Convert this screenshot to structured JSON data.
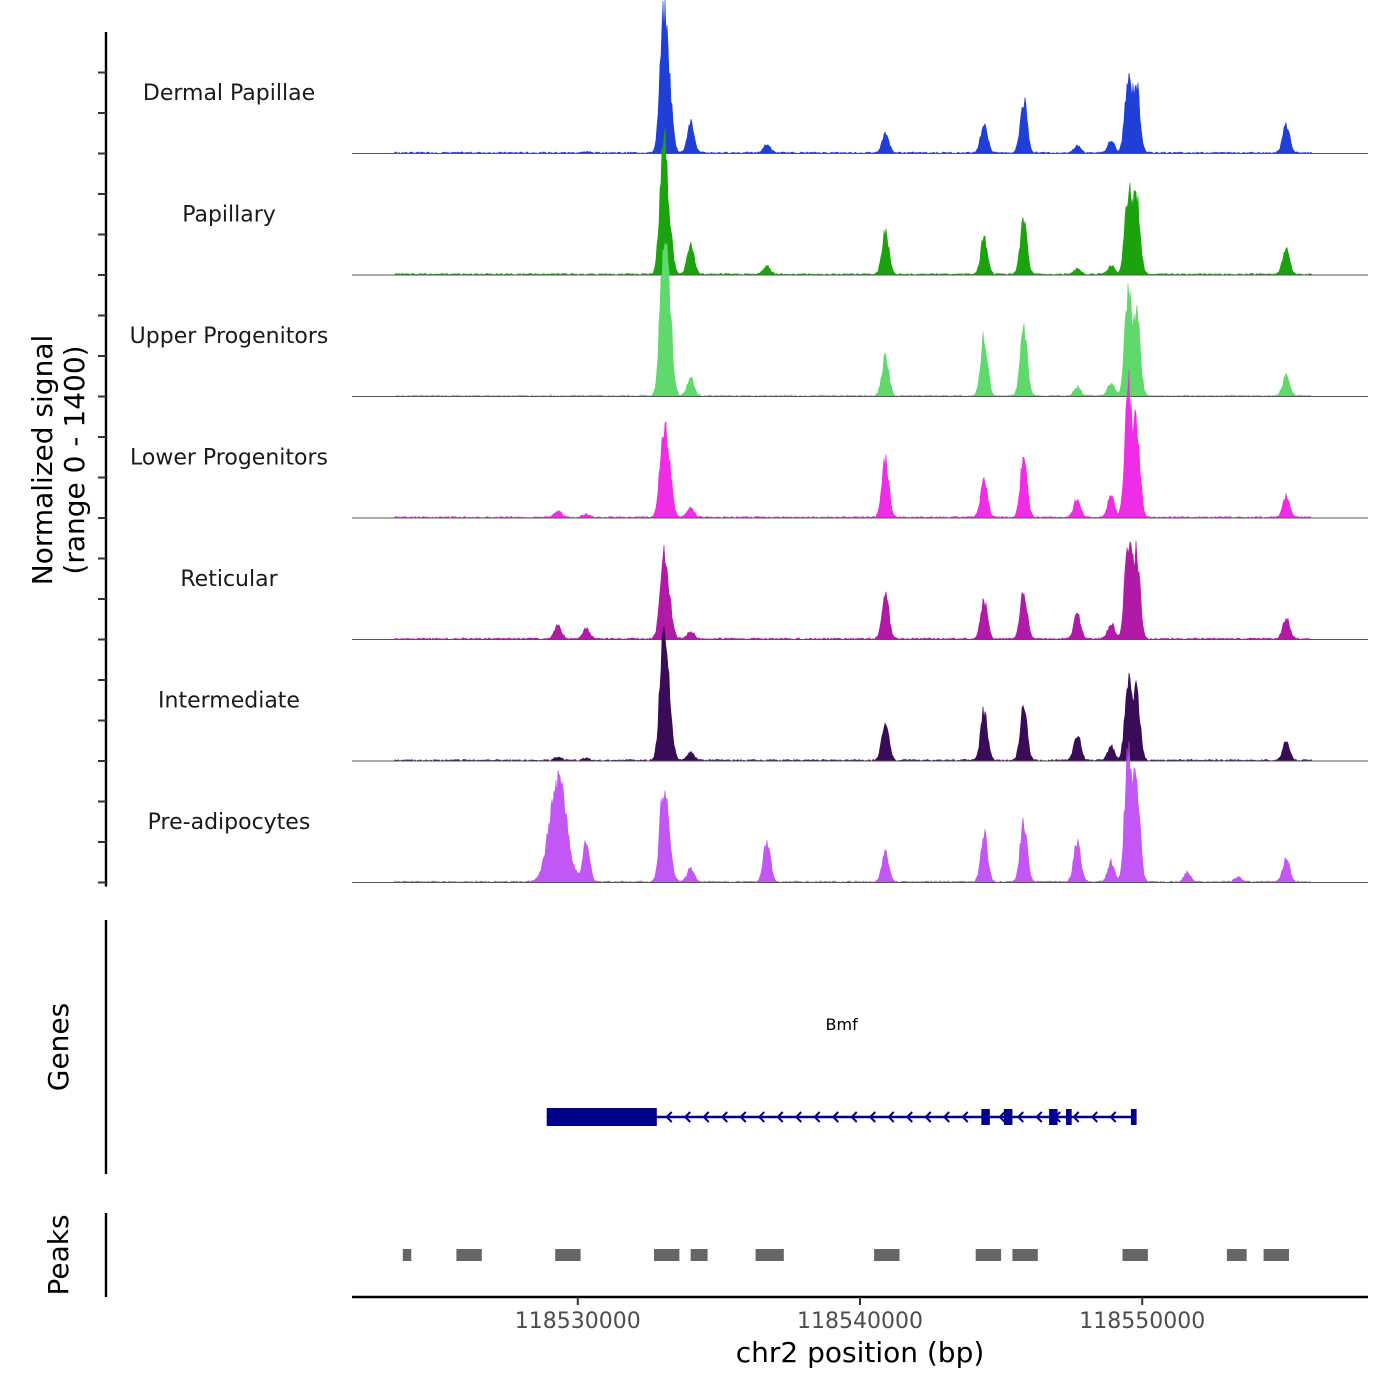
{
  "chart_data": {
    "type": "area",
    "title": "",
    "region": {
      "chromosome": "chr2",
      "start": 118522000,
      "end": 118558000
    },
    "xlabel": "chr2 position (bp)",
    "xticks": [
      118530000,
      118540000,
      118550000
    ],
    "xtick_labels": [
      "118530000",
      "118540000",
      "118550000"
    ],
    "ylabel_line1": "Normalized signal",
    "ylabel_line2": "(range 0 - 1400)",
    "ylim": [
      0,
      1400
    ],
    "panel_titles": {
      "genes": "Genes",
      "peaks": "Peaks"
    },
    "peak_positions": [
      118529300,
      118530300,
      118532900,
      118533000,
      118533100,
      118533250,
      118534000,
      118536700,
      118540900,
      118544400,
      118545800,
      118547700,
      118548900,
      118549500,
      118549800,
      118551600,
      118552300,
      118553400,
      118555100
    ],
    "series": [
      {
        "name": "Dermal Papillae",
        "color": "#1f3fd6",
        "peaks": [
          0,
          15,
          0,
          1300,
          1000,
          750,
          500,
          140,
          320,
          500,
          870,
          110,
          200,
          1140,
          1100,
          0,
          0,
          0,
          480
        ]
      },
      {
        "name": "Papillary",
        "color": "#1aa30d",
        "peaks": [
          0,
          0,
          0,
          1400,
          850,
          560,
          500,
          140,
          700,
          590,
          920,
          90,
          150,
          1330,
          1250,
          0,
          0,
          0,
          420
        ]
      },
      {
        "name": "Upper Progenitors",
        "color": "#5fd96c",
        "peaks": [
          0,
          0,
          0,
          1380,
          1280,
          1050,
          300,
          0,
          650,
          980,
          1150,
          150,
          220,
          1600,
          1350,
          0,
          0,
          0,
          330
        ]
      },
      {
        "name": "Lower Progenitors",
        "color": "#f02de6",
        "peaks": [
          110,
          50,
          0,
          880,
          650,
          550,
          150,
          0,
          960,
          650,
          990,
          310,
          350,
          2100,
          1500,
          0,
          0,
          0,
          350
        ]
      },
      {
        "name": "Reticular",
        "color": "#b01aa6",
        "peaks": [
          230,
          170,
          0,
          780,
          620,
          400,
          130,
          0,
          750,
          620,
          800,
          420,
          260,
          1620,
          1400,
          0,
          0,
          0,
          350
        ]
      },
      {
        "name": "Intermediate",
        "color": "#3a0c57",
        "peaks": [
          50,
          40,
          0,
          1350,
          800,
          620,
          140,
          0,
          650,
          820,
          900,
          420,
          240,
          1250,
          1150,
          0,
          0,
          0,
          310
        ]
      },
      {
        "name": "Pre-adipocytes",
        "color": "#c257f5",
        "peaks": [
          1650,
          640,
          0,
          1020,
          650,
          380,
          240,
          670,
          480,
          800,
          990,
          650,
          330,
          2070,
          1600,
          150,
          0,
          80,
          400
        ]
      }
    ],
    "genes": [
      {
        "name": "Bmf",
        "color": "#00008b",
        "strand": "-",
        "start": 118528900,
        "end": 118549800,
        "exons": [
          [
            118528900,
            118532800
          ],
          [
            118544300,
            118544600
          ],
          [
            118545100,
            118545400
          ],
          [
            118546700,
            118547000
          ],
          [
            118547300,
            118547500
          ],
          [
            118549600,
            118549800
          ]
        ]
      }
    ],
    "peak_regions": [
      [
        118523800,
        118524100
      ],
      [
        118525700,
        118526600
      ],
      [
        118529200,
        118530100
      ],
      [
        118532700,
        118533600
      ],
      [
        118534000,
        118534600
      ],
      [
        118536300,
        118537300
      ],
      [
        118540500,
        118541400
      ],
      [
        118544100,
        118545000
      ],
      [
        118545400,
        118546300
      ],
      [
        118549300,
        118550200
      ],
      [
        118553000,
        118553700
      ],
      [
        118554300,
        118555200
      ]
    ],
    "peak_color": "#666666"
  }
}
